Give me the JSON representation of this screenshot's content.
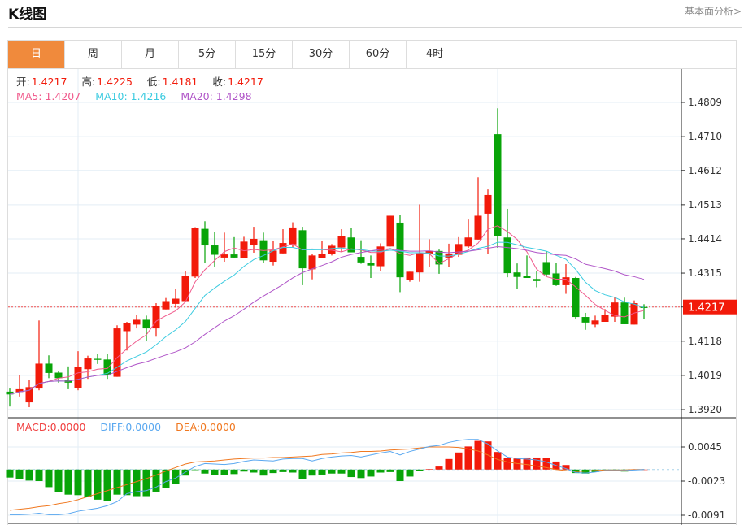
{
  "header": {
    "title": "K线图",
    "link": "基本面分析>"
  },
  "tabs": [
    {
      "label": "日",
      "active": true
    },
    {
      "label": "周"
    },
    {
      "label": "月"
    },
    {
      "label": "5分"
    },
    {
      "label": "15分"
    },
    {
      "label": "30分"
    },
    {
      "label": "60分"
    },
    {
      "label": "4时"
    }
  ],
  "ohlc_info": {
    "open_label": "开:",
    "open": "1.4217",
    "high_label": "高:",
    "high": "1.4225",
    "low_label": "低:",
    "low": "1.4181",
    "close_label": "收:",
    "close": "1.4217"
  },
  "ma_info": {
    "ma5": "MA5: 1.4207",
    "ma10": "MA10: 1.4216",
    "ma20": "MA20: 1.4298"
  },
  "macd_info": {
    "macd": "MACD:0.0000",
    "diff": "DIFF:0.0000",
    "dea": "DEA:0.0000"
  },
  "colors": {
    "up": "#f21a0a",
    "down": "#08a408",
    "ma5": "#f05a8c",
    "ma10": "#3ccbe0",
    "ma20": "#b055c8",
    "diff": "#5aa8f0",
    "dea": "#f07820",
    "accent": "#f08a3c"
  },
  "chart_data": [
    {
      "type": "candlestick",
      "price_axis": {
        "ticks": [
          "1.4809",
          "1.4710",
          "1.4612",
          "1.4513",
          "1.4414",
          "1.4315",
          "1.4217",
          "1.4118",
          "1.4019",
          "1.3920"
        ],
        "range": [
          1.392,
          1.4809
        ]
      },
      "last_price": "1.4217",
      "ohlc": [
        [
          1.3972,
          1.3981,
          1.3929,
          1.3964
        ],
        [
          1.3971,
          1.4021,
          1.3958,
          1.3979
        ],
        [
          1.3941,
          1.4007,
          1.3927,
          1.3985
        ],
        [
          1.3981,
          1.4178,
          1.3976,
          1.4053
        ],
        [
          1.4053,
          1.4077,
          1.4011,
          1.4026
        ],
        [
          1.4027,
          1.4031,
          1.3998,
          1.4011
        ],
        [
          1.4007,
          1.4045,
          1.3979,
          1.3998
        ],
        [
          1.3982,
          1.4089,
          1.3976,
          1.4044
        ],
        [
          1.4037,
          1.4076,
          1.4009,
          1.4068
        ],
        [
          1.4067,
          1.4082,
          1.4052,
          1.4064
        ],
        [
          1.4065,
          1.408,
          1.4009,
          1.4021
        ],
        [
          1.4015,
          1.4164,
          1.4015,
          1.4155
        ],
        [
          1.4147,
          1.4174,
          1.4091,
          1.4171
        ],
        [
          1.4166,
          1.4194,
          1.4155,
          1.418
        ],
        [
          1.418,
          1.4192,
          1.4119,
          1.4155
        ],
        [
          1.4155,
          1.4228,
          1.4131,
          1.4219
        ],
        [
          1.421,
          1.4243,
          1.421,
          1.4234
        ],
        [
          1.4226,
          1.4269,
          1.4215,
          1.4241
        ],
        [
          1.4234,
          1.4322,
          1.4234,
          1.4308
        ],
        [
          1.4305,
          1.4448,
          1.4301,
          1.4446
        ],
        [
          1.4443,
          1.4465,
          1.4344,
          1.4395
        ],
        [
          1.4395,
          1.4435,
          1.4334,
          1.4368
        ],
        [
          1.436,
          1.4432,
          1.4348,
          1.4369
        ],
        [
          1.4369,
          1.4419,
          1.436,
          1.436
        ],
        [
          1.4359,
          1.442,
          1.4359,
          1.4406
        ],
        [
          1.4396,
          1.4449,
          1.4374,
          1.4414
        ],
        [
          1.441,
          1.4432,
          1.4344,
          1.4352
        ],
        [
          1.4348,
          1.4409,
          1.4337,
          1.438
        ],
        [
          1.4372,
          1.4442,
          1.4372,
          1.4402
        ],
        [
          1.4398,
          1.4462,
          1.4388,
          1.4447
        ],
        [
          1.4439,
          1.4449,
          1.428,
          1.4329
        ],
        [
          1.4326,
          1.4371,
          1.4297,
          1.4366
        ],
        [
          1.4358,
          1.4409,
          1.4358,
          1.437
        ],
        [
          1.437,
          1.4399,
          1.4366,
          1.4394
        ],
        [
          1.4389,
          1.4442,
          1.4376,
          1.4422
        ],
        [
          1.4418,
          1.4446,
          1.4375,
          1.4375
        ],
        [
          1.4362,
          1.441,
          1.4342,
          1.4346
        ],
        [
          1.4345,
          1.4366,
          1.4301,
          1.4337
        ],
        [
          1.4335,
          1.4401,
          1.4321,
          1.4392
        ],
        [
          1.4392,
          1.4481,
          1.4392,
          1.4481
        ],
        [
          1.4461,
          1.4484,
          1.426,
          1.4303
        ],
        [
          1.4296,
          1.4319,
          1.429,
          1.4319
        ],
        [
          1.4317,
          1.4514,
          1.429,
          1.4374
        ],
        [
          1.4371,
          1.4413,
          1.4334,
          1.4379
        ],
        [
          1.4379,
          1.4383,
          1.4313,
          1.434
        ],
        [
          1.436,
          1.44,
          1.4333,
          1.4371
        ],
        [
          1.4368,
          1.4419,
          1.4362,
          1.4399
        ],
        [
          1.4392,
          1.447,
          1.4388,
          1.4418
        ],
        [
          1.4412,
          1.4592,
          1.4412,
          1.4481
        ],
        [
          1.4487,
          1.4557,
          1.437,
          1.4541
        ],
        [
          1.4717,
          1.4792,
          1.4388,
          1.4421
        ],
        [
          1.4418,
          1.4501,
          1.4303,
          1.4315
        ],
        [
          1.4317,
          1.4343,
          1.4269,
          1.4304
        ],
        [
          1.4308,
          1.4366,
          1.4301,
          1.4301
        ],
        [
          1.4298,
          1.4321,
          1.4274,
          1.4292
        ],
        [
          1.4347,
          1.4378,
          1.4305,
          1.4311
        ],
        [
          1.4314,
          1.4345,
          1.4278,
          1.428
        ],
        [
          1.428,
          1.4341,
          1.4255,
          1.4303
        ],
        [
          1.4301,
          1.4304,
          1.4181,
          1.4188
        ],
        [
          1.4188,
          1.42,
          1.4151,
          1.4172
        ],
        [
          1.4166,
          1.4192,
          1.4159,
          1.4178
        ],
        [
          1.4174,
          1.4211,
          1.4174,
          1.4194
        ],
        [
          1.4189,
          1.4245,
          1.4174,
          1.423
        ],
        [
          1.423,
          1.4244,
          1.4167,
          1.4167
        ],
        [
          1.4166,
          1.4236,
          1.4166,
          1.4228
        ],
        [
          1.4217,
          1.4225,
          1.4181,
          1.4217
        ]
      ]
    },
    {
      "type": "macd",
      "axis": {
        "ticks": [
          "0.0045",
          "-0.0023",
          "-0.0091"
        ],
        "range": [
          -0.0091,
          0.0045
        ]
      },
      "histogram": [
        -0.0016,
        -0.0019,
        -0.0022,
        -0.0023,
        -0.0035,
        -0.0045,
        -0.005,
        -0.0051,
        -0.0055,
        -0.006,
        -0.0062,
        -0.005,
        -0.0051,
        -0.0053,
        -0.0053,
        -0.0044,
        -0.0037,
        -0.0028,
        -0.0012,
        -0.0001,
        -0.0008,
        -0.0011,
        -0.0011,
        -0.0009,
        -0.0004,
        -0.0006,
        -0.0012,
        -0.0007,
        -0.0005,
        -0.0006,
        -0.0019,
        -0.0012,
        -0.001,
        -0.0008,
        -0.0008,
        -0.0015,
        -0.0017,
        -0.0014,
        -0.0006,
        -0.0005,
        -0.0023,
        -0.0014,
        -0.0003,
        0.0001,
        0.0006,
        0.0021,
        0.0034,
        0.0046,
        0.0057,
        0.0056,
        0.0035,
        0.0023,
        0.0022,
        0.0024,
        0.0024,
        0.0023,
        0.0016,
        0.0009,
        -0.0007,
        -0.0008,
        -0.0005,
        -0.0003,
        -0.0001,
        -0.0004,
        0.0,
        0.0
      ],
      "diff": [
        -0.009,
        -0.009,
        -0.0089,
        -0.0087,
        -0.009,
        -0.009,
        -0.0088,
        -0.0083,
        -0.008,
        -0.0077,
        -0.0072,
        -0.0064,
        -0.0048,
        -0.0044,
        -0.0042,
        -0.0035,
        -0.0024,
        -0.0017,
        -0.0005,
        0.0006,
        0.0012,
        0.0011,
        0.001,
        0.0012,
        0.0016,
        0.0019,
        0.0018,
        0.0017,
        0.0021,
        0.0022,
        0.0022,
        0.0017,
        0.0022,
        0.0025,
        0.0027,
        0.0028,
        0.0025,
        0.0029,
        0.0033,
        0.0036,
        0.0029,
        0.0036,
        0.0041,
        0.0046,
        0.0048,
        0.0054,
        0.0058,
        0.006,
        0.006,
        0.0051,
        0.0037,
        0.0025,
        0.0022,
        0.0021,
        0.0019,
        0.0015,
        0.0008,
        0.0002,
        -0.0006,
        -0.0007,
        -0.0005,
        -0.0002,
        -0.0002,
        -0.0002,
        -0.0001,
        0.0
      ],
      "dea": [
        -0.0081,
        -0.0079,
        -0.0077,
        -0.0074,
        -0.0072,
        -0.0068,
        -0.0065,
        -0.006,
        -0.0054,
        -0.0048,
        -0.0042,
        -0.0036,
        -0.003,
        -0.0024,
        -0.0018,
        -0.0011,
        -0.0003,
        0.0004,
        0.0011,
        0.0015,
        0.0016,
        0.0017,
        0.0019,
        0.0021,
        0.0022,
        0.0023,
        0.0023,
        0.0024,
        0.0024,
        0.0025,
        0.0026,
        0.0027,
        0.003,
        0.0031,
        0.0033,
        0.0034,
        0.0036,
        0.0036,
        0.0037,
        0.0039,
        0.004,
        0.0041,
        0.0043,
        0.0045,
        0.0045,
        0.0045,
        0.0044,
        0.0041,
        0.0037,
        0.0029,
        0.002,
        0.0015,
        0.0012,
        0.001,
        0.0007,
        0.0004,
        0.0,
        -0.0002,
        -0.0004,
        -0.0003,
        -0.0002,
        -0.0001,
        -0.0001,
        -0.0001,
        0.0,
        0.0
      ]
    }
  ]
}
